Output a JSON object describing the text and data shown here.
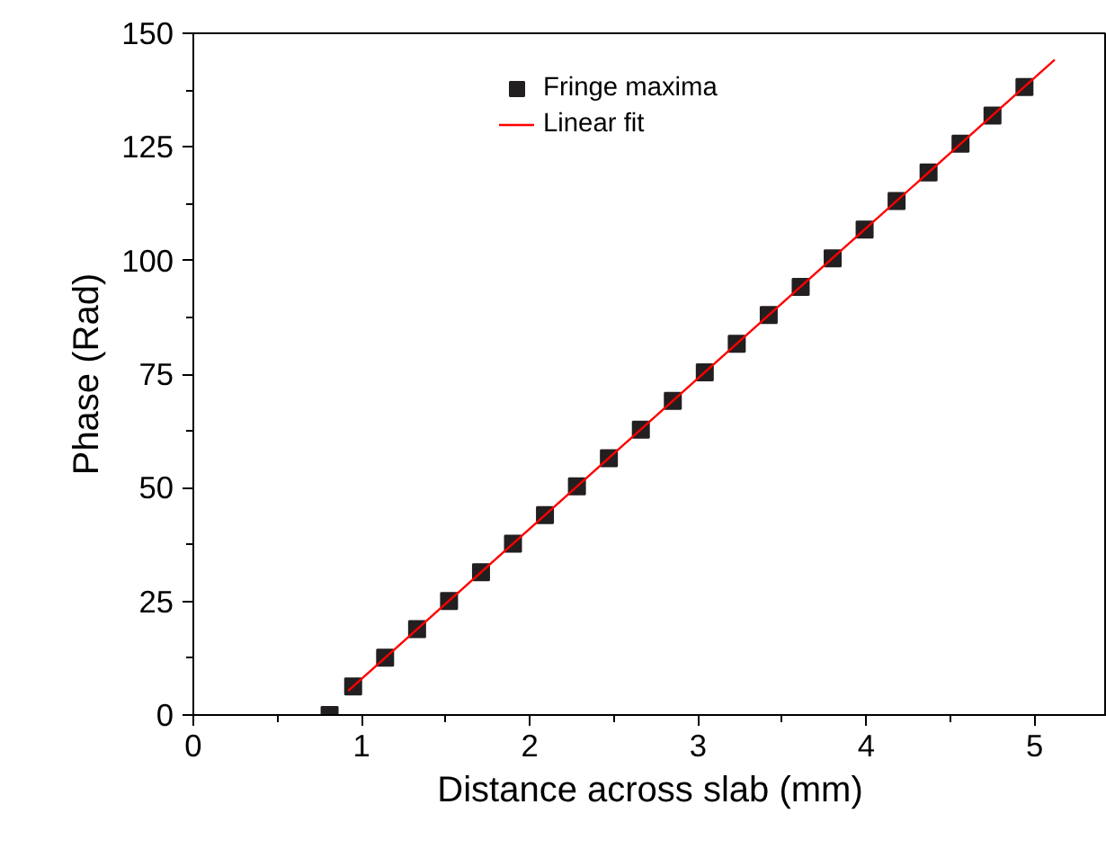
{
  "chart_data": {
    "type": "scatter",
    "xlabel": "Distance across slab (mm)",
    "ylabel": "Phase (Rad)",
    "series": [
      {
        "name": "Fringe maxima",
        "color": "#231f20",
        "marker": "square",
        "x": [
          0.81,
          0.95,
          1.14,
          1.33,
          1.52,
          1.71,
          1.9,
          2.09,
          2.28,
          2.47,
          2.66,
          2.85,
          3.04,
          3.23,
          3.42,
          3.61,
          3.8,
          3.99,
          4.18,
          4.37,
          4.56,
          4.75,
          4.94
        ],
        "values": [
          0,
          6.3,
          12.6,
          18.9,
          25.1,
          31.4,
          37.7,
          44,
          50.3,
          56.5,
          62.8,
          69.1,
          75.4,
          81.7,
          88,
          94.2,
          100.5,
          106.8,
          113.1,
          119.4,
          125.7,
          131.9,
          138.2
        ]
      },
      {
        "name": "Linear fit",
        "type": "line",
        "color": "#ff0000",
        "line_style": "solid",
        "x": [
          0.92,
          5.12
        ],
        "values": [
          5.3,
          144.2
        ]
      }
    ],
    "xlim": [
      0,
      5.43
    ],
    "xticks": [
      0,
      1,
      2,
      3,
      4,
      5
    ],
    "ylim": [
      0,
      150
    ],
    "yticks": [
      0,
      25,
      50,
      75,
      100,
      125,
      150
    ],
    "grid": false,
    "legend": "top right"
  }
}
